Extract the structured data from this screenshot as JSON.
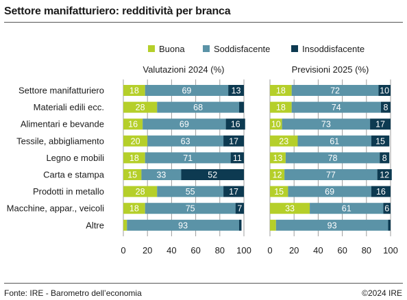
{
  "header": {
    "title": "Settore manifatturiero: redditività per branca"
  },
  "footer": {
    "source": "Fonte: IRE - Barometro dell’economia",
    "copyright": "©2024 IRE"
  },
  "colors": {
    "Buona": "#b5cf2a",
    "Soddisfacente": "#5b93a7",
    "Insoddisfacente": "#0d3a51",
    "grid": "#9c9c9c"
  },
  "chart_data": {
    "type": "bar",
    "orientation": "horizontal",
    "stacked": true,
    "title": "Settore manifatturiero: redditività per branca",
    "legend": [
      "Buona",
      "Soddisfacente",
      "Insoddisfacente"
    ],
    "legend_position": "top",
    "categories": [
      "Settore manifatturiero",
      "Materiali edili ecc.",
      "Alimentari e bevande",
      "Tessile, abbigliamento",
      "Legno e mobili",
      "Carta e stampa",
      "Prodotti in metallo",
      "Macchine, appar., veicoli",
      "Altre"
    ],
    "xlim": [
      0,
      100
    ],
    "xticks": [
      0,
      20,
      40,
      60,
      80,
      100
    ],
    "grid": true,
    "panels": [
      {
        "title": "Valutazioni 2024 (%)",
        "series": [
          {
            "name": "Buona",
            "values": [
              18,
              28,
              16,
              20,
              18,
              15,
              28,
              18,
              3
            ]
          },
          {
            "name": "Soddisfacente",
            "values": [
              69,
              68,
              69,
              63,
              71,
              33,
              55,
              75,
              93
            ]
          },
          {
            "name": "Insoddisfacente",
            "values": [
              13,
              4,
              16,
              17,
              11,
              52,
              17,
              7,
              2
            ]
          }
        ],
        "labels": [
          [
            "18",
            "69",
            "13"
          ],
          [
            "28",
            "68",
            ""
          ],
          [
            "16",
            "69",
            "16"
          ],
          [
            "20",
            "63",
            "17"
          ],
          [
            "18",
            "71",
            "11"
          ],
          [
            "15",
            "33",
            "52"
          ],
          [
            "28",
            "55",
            "17"
          ],
          [
            "18",
            "75",
            "7"
          ],
          [
            "",
            "93",
            ""
          ]
        ]
      },
      {
        "title": "Previsioni 2025 (%)",
        "series": [
          {
            "name": "Buona",
            "values": [
              18,
              18,
              10,
              23,
              13,
              12,
              15,
              33,
              5
            ]
          },
          {
            "name": "Soddisfacente",
            "values": [
              72,
              74,
              73,
              61,
              78,
              77,
              69,
              61,
              93
            ]
          },
          {
            "name": "Insoddisfacente",
            "values": [
              10,
              8,
              17,
              15,
              8,
              12,
              16,
              6,
              2
            ]
          }
        ],
        "labels": [
          [
            "18",
            "72",
            "10"
          ],
          [
            "18",
            "74",
            "8"
          ],
          [
            "10",
            "73",
            "17"
          ],
          [
            "23",
            "61",
            "15"
          ],
          [
            "13",
            "78",
            "8"
          ],
          [
            "12",
            "77",
            "12"
          ],
          [
            "15",
            "69",
            "16"
          ],
          [
            "33",
            "61",
            "6"
          ],
          [
            "",
            "93",
            ""
          ]
        ]
      }
    ]
  }
}
